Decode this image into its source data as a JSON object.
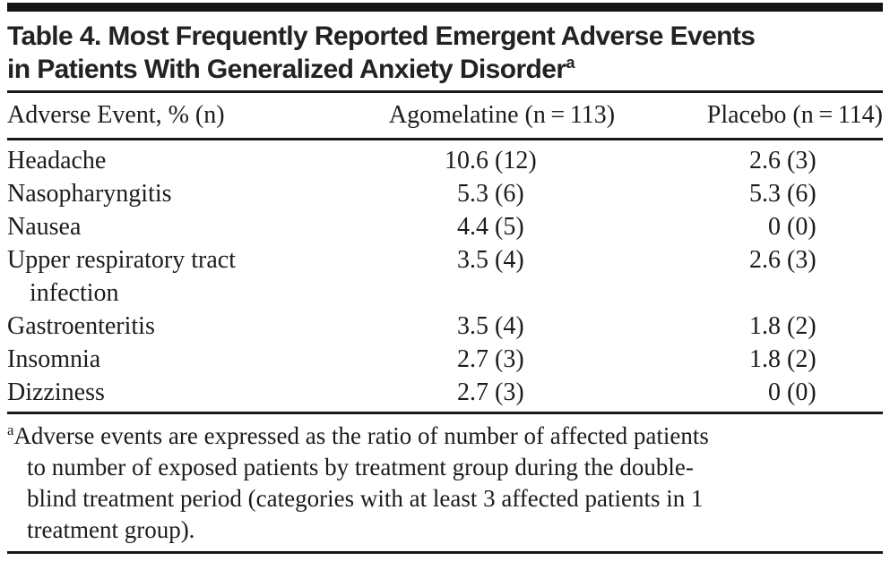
{
  "title": {
    "line1": "Table 4. Most Frequently Reported Emergent Adverse Events",
    "line2": "in Patients With Generalized Anxiety Disorder",
    "superscript": "a"
  },
  "columns": {
    "event": "Adverse Event, % (n)",
    "agomelatine": "Agomelatine (n = 113)",
    "placebo": "Placebo (n = 114)"
  },
  "table": {
    "rows": [
      {
        "event": "Headache",
        "agomelatine_pct": "10.6",
        "agomelatine_n": "(12)",
        "placebo_pct": "2.6",
        "placebo_n": "(3)"
      },
      {
        "event": "Nasopharyngitis",
        "agomelatine_pct": "5.3",
        "agomelatine_n": "(6)",
        "placebo_pct": "5.3",
        "placebo_n": "(6)"
      },
      {
        "event": "Nausea",
        "agomelatine_pct": "4.4",
        "agomelatine_n": "(5)",
        "placebo_pct": "0",
        "placebo_n": "(0)"
      },
      {
        "event": "Upper respiratory tract\ninfection",
        "agomelatine_pct": "3.5",
        "agomelatine_n": "(4)",
        "placebo_pct": "2.6",
        "placebo_n": "(3)"
      },
      {
        "event": "Gastroenteritis",
        "agomelatine_pct": "3.5",
        "agomelatine_n": "(4)",
        "placebo_pct": "1.8",
        "placebo_n": "(2)"
      },
      {
        "event": "Insomnia",
        "agomelatine_pct": "2.7",
        "agomelatine_n": "(3)",
        "placebo_pct": "1.8",
        "placebo_n": "(2)"
      },
      {
        "event": "Dizziness",
        "agomelatine_pct": "2.7",
        "agomelatine_n": "(3)",
        "placebo_pct": "0",
        "placebo_n": "(0)"
      }
    ]
  },
  "footnote": {
    "marker": "a",
    "lines": [
      "Adverse events are expressed as the ratio of number of affected patients",
      "to number of exposed patients by treatment group during the double-",
      "blind treatment period (categories with at least 3 affected patients in 1",
      "treatment group)."
    ]
  },
  "colors": {
    "background": "#ffffff",
    "text": "#1c1c1c",
    "title_text": "#222222",
    "rule": "#181818",
    "top_bar": "#141414"
  }
}
